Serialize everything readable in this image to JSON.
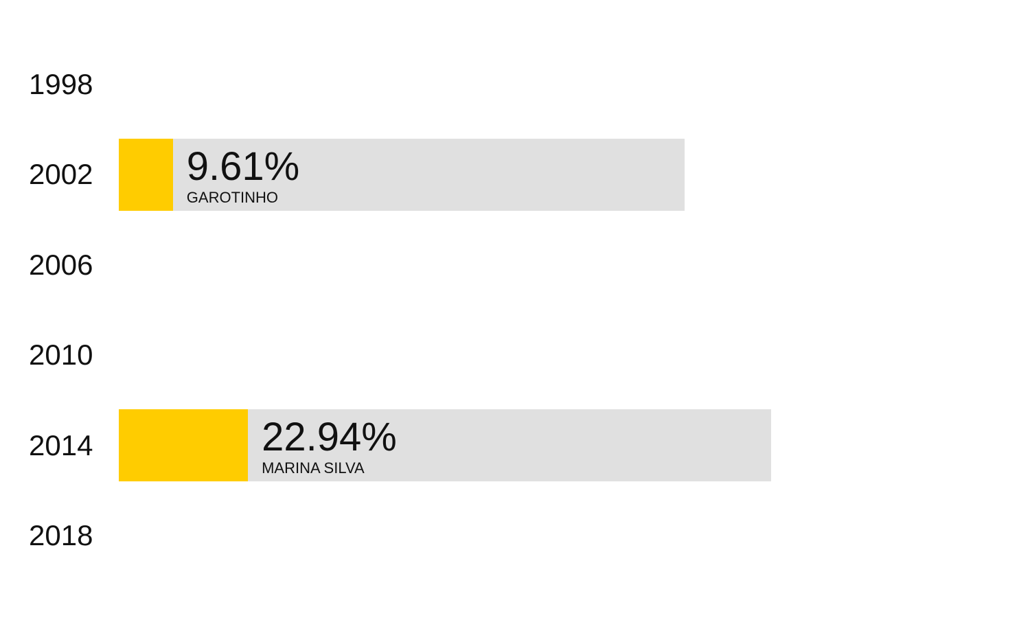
{
  "chart_data": {
    "type": "bar",
    "orientation": "horizontal",
    "categories": [
      "1998",
      "2002",
      "2006",
      "2010",
      "2014",
      "2018"
    ],
    "series": [
      {
        "values": [
          null,
          9.61,
          null,
          null,
          22.94,
          null
        ],
        "value_labels": [
          "",
          "9.61%",
          "",
          "",
          "22.94%",
          ""
        ],
        "candidates": [
          "",
          "GAROTINHO",
          "",
          "",
          "MARINA SILVA",
          ""
        ]
      }
    ],
    "unit": "%",
    "title": "",
    "xlabel": "",
    "ylabel": "",
    "xlim": [
      0,
      100
    ],
    "grid": false,
    "legend": "none"
  },
  "colors": {
    "fill": "#ffcc00",
    "track": "#e0e0e0",
    "text": "#111111"
  }
}
